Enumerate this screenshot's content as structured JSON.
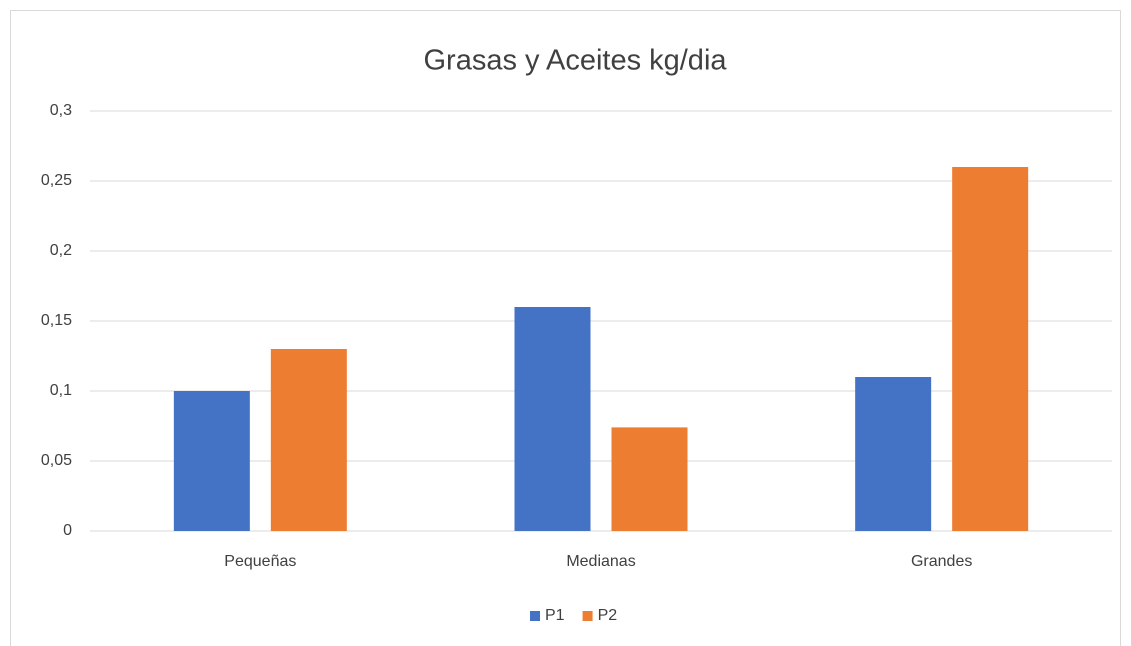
{
  "chart_data": {
    "type": "bar",
    "title": "Grasas y Aceites kg/dia",
    "categories": [
      "Pequeñas",
      "Medianas",
      "Grandes"
    ],
    "series": [
      {
        "name": "P1",
        "color": "#4472c4",
        "values": [
          0.1,
          0.16,
          0.11
        ]
      },
      {
        "name": "P2",
        "color": "#ed7d31",
        "values": [
          0.13,
          0.074,
          0.26
        ]
      }
    ],
    "ylim": [
      0,
      0.3
    ],
    "yticks": [
      0,
      {
        "value": 0.05,
        "label": "0,05"
      },
      {
        "value": 0.1,
        "label": "0,1"
      },
      {
        "value": 0.15,
        "label": "0,15"
      },
      {
        "value": 0.2,
        "label": "0,2"
      },
      {
        "value": 0.25,
        "label": "0,25"
      },
      {
        "value": 0.3,
        "label": "0,3"
      }
    ],
    "grid": true,
    "legend": "bottom"
  }
}
